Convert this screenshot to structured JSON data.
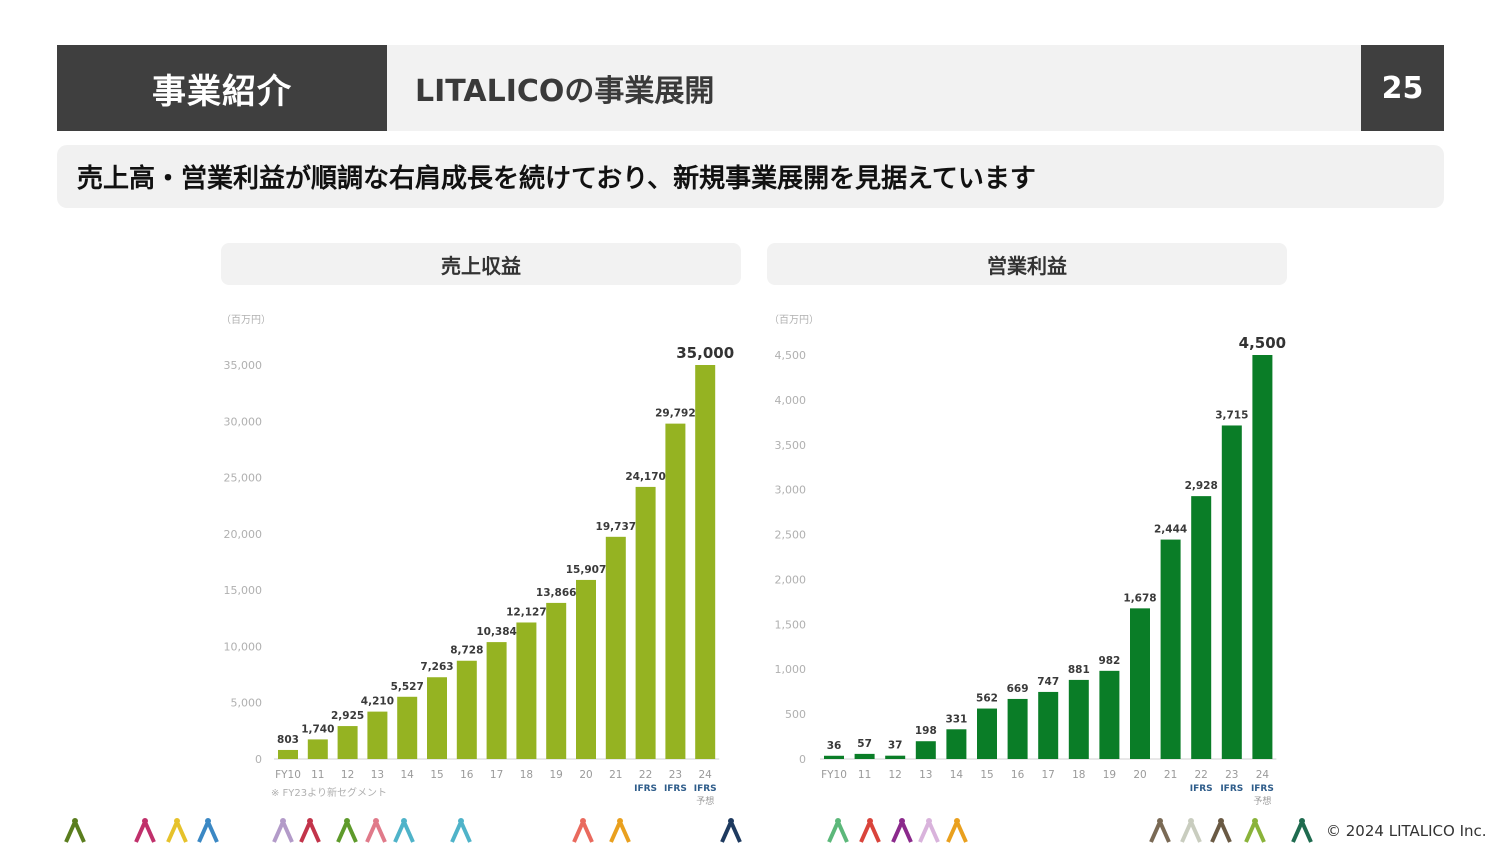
{
  "header": {
    "section": "事業紹介",
    "title": "LITALICOの事業展開",
    "page_number": "25"
  },
  "subtitle": "売上高・営業利益が順調な右肩成長を続けており、新規事業展開を見据えています",
  "colors": {
    "revenue_bar": "#95b322",
    "profit_bar": "#0a7d27",
    "ifrs_label": "#2e5c8a",
    "header_dark": "#3f3f3f"
  },
  "chart_data": [
    {
      "type": "bar",
      "title": "売上収益",
      "unit": "（百万円）",
      "categories": [
        "FY10",
        "11",
        "12",
        "13",
        "14",
        "15",
        "16",
        "17",
        "18",
        "19",
        "20",
        "21",
        "22",
        "23",
        "24"
      ],
      "category_notes": [
        "",
        "",
        "",
        "",
        "",
        "",
        "",
        "",
        "",
        "",
        "",
        "",
        "IFRS",
        "IFRS",
        "IFRS"
      ],
      "forecast_note": "予想",
      "values": [
        803,
        1740,
        2925,
        4210,
        5527,
        7263,
        8728,
        10384,
        12127,
        13866,
        15907,
        19737,
        24170,
        29792,
        35000
      ],
      "value_labels": [
        "803",
        "1,740",
        "2,925",
        "4,210",
        "5,527",
        "7,263",
        "8,728",
        "10,384",
        "12,127",
        "13,866",
        "15,907",
        "19,737",
        "24,170",
        "29,792",
        "35,000"
      ],
      "yticks": [
        "0",
        "5,000",
        "10,000",
        "15,000",
        "20,000",
        "25,000",
        "30,000",
        "35,000"
      ],
      "ylim": [
        0,
        35000
      ],
      "footnote": "※ FY23より新セグメント",
      "grid": false
    },
    {
      "type": "bar",
      "title": "営業利益",
      "unit": "（百万円）",
      "categories": [
        "FY10",
        "11",
        "12",
        "13",
        "14",
        "15",
        "16",
        "17",
        "18",
        "19",
        "20",
        "21",
        "22",
        "23",
        "24"
      ],
      "category_notes": [
        "",
        "",
        "",
        "",
        "",
        "",
        "",
        "",
        "",
        "",
        "",
        "",
        "IFRS",
        "IFRS",
        "IFRS"
      ],
      "forecast_note": "予想",
      "values": [
        36,
        57,
        37,
        198,
        331,
        562,
        669,
        747,
        881,
        982,
        1678,
        2444,
        2928,
        3715,
        4500
      ],
      "value_labels": [
        "36",
        "57",
        "37",
        "198",
        "331",
        "562",
        "669",
        "747",
        "881",
        "982",
        "1,678",
        "2,444",
        "2,928",
        "3,715",
        "4,500"
      ],
      "yticks": [
        "0",
        "500",
        "1,000",
        "1,500",
        "2,000",
        "2,500",
        "3,000",
        "3,500",
        "4,000",
        "4,500"
      ],
      "ylim": [
        0,
        4500
      ],
      "grid": false
    }
  ],
  "footer": {
    "copyright": "© 2024 LITALICO Inc.",
    "figure_colors": [
      "#5a7d1e",
      "#c0306b",
      "#e6c22b",
      "#3b88c4",
      "#b39bc9",
      "#c2344a",
      "#5e9a2b",
      "#e07a8a",
      "#4fb3c9",
      "#4fb3c9",
      "#e96a5e",
      "#e9a01e",
      "#1e3a5f",
      "#5cb87a",
      "#d9443b",
      "#8b2a8c",
      "#d9b3dc",
      "#e9a01e",
      "#7a6a55",
      "#c9cdbf",
      "#6a5a44",
      "#8ab33a",
      "#1f6b4f"
    ]
  }
}
